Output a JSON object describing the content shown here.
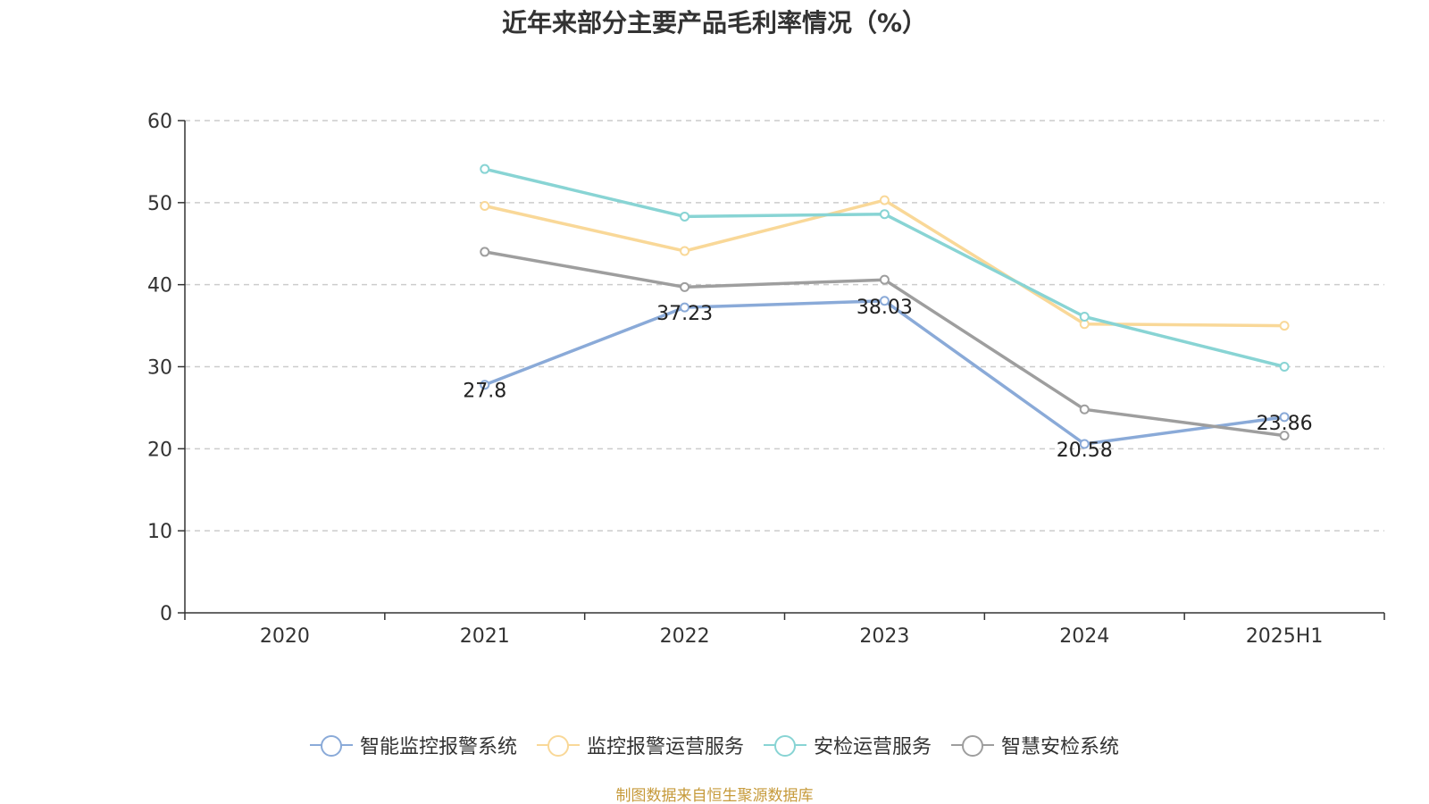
{
  "chart_data": {
    "type": "line",
    "title": "近年来部分主要产品毛利率情况（%）",
    "categories": [
      "2020",
      "2021",
      "2022",
      "2023",
      "2024",
      "2025H1"
    ],
    "ylim": [
      0,
      60
    ],
    "yticks": [
      0,
      10,
      20,
      30,
      40,
      50,
      60
    ],
    "grid": true,
    "legend_position": "bottom",
    "series": [
      {
        "name": "智能监控报警系统",
        "color": "#8aaad8",
        "values": [
          null,
          27.8,
          37.23,
          38.03,
          20.58,
          23.86
        ],
        "labels": [
          "",
          "27.8",
          "37.23",
          "38.03",
          "20.58",
          "23.86"
        ]
      },
      {
        "name": "监控报警运营服务",
        "color": "#f9d898",
        "values": [
          null,
          49.6,
          44.1,
          50.3,
          35.2,
          35.0
        ]
      },
      {
        "name": "安检运营服务",
        "color": "#88d4d4",
        "values": [
          null,
          54.1,
          48.3,
          48.6,
          36.1,
          30.0
        ]
      },
      {
        "name": "智慧安检系统",
        "color": "#9e9e9e",
        "values": [
          null,
          44.0,
          39.7,
          40.6,
          24.8,
          21.6
        ]
      }
    ]
  },
  "footer": {
    "source": "制图数据来自恒生聚源数据库"
  }
}
